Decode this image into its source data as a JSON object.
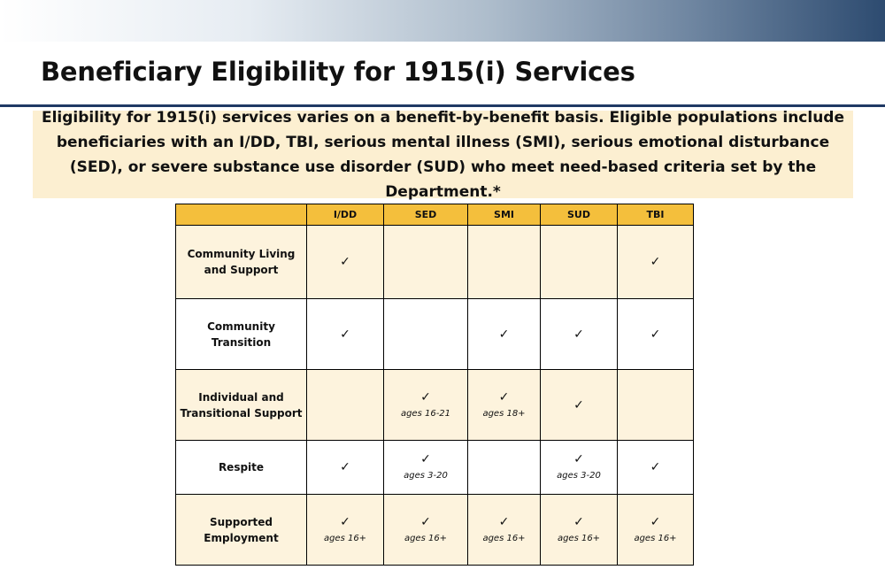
{
  "slide": {
    "title": "Beneficiary Eligibility for 1915(i) Services",
    "callout": "Eligibility for 1915(i) services varies on a benefit-by-benefit basis. Eligible populations include beneficiaries with an I/DD, TBI, serious mental illness (SMI), serious emotional disturbance (SED), or severe substance use disorder (SUD) who meet need-based criteria set by the Department.*"
  },
  "table": {
    "columns": [
      "I/DD",
      "SED",
      "SMI",
      "SUD",
      "TBI"
    ],
    "check_mark": "✓",
    "rows": [
      {
        "label": "Community Living and Support",
        "cells": [
          {
            "check": "✓",
            "note": ""
          },
          {
            "check": "",
            "note": ""
          },
          {
            "check": "",
            "note": ""
          },
          {
            "check": "",
            "note": ""
          },
          {
            "check": "✓",
            "note": ""
          }
        ]
      },
      {
        "label": "Community Transition",
        "cells": [
          {
            "check": "✓",
            "note": ""
          },
          {
            "check": "",
            "note": ""
          },
          {
            "check": "✓",
            "note": ""
          },
          {
            "check": "✓",
            "note": ""
          },
          {
            "check": "✓",
            "note": ""
          }
        ]
      },
      {
        "label": "Individual and Transitional Support",
        "cells": [
          {
            "check": "",
            "note": ""
          },
          {
            "check": "✓",
            "note": "ages 16-21"
          },
          {
            "check": "✓",
            "note": "ages 18+"
          },
          {
            "check": "✓",
            "note": ""
          },
          {
            "check": "",
            "note": ""
          }
        ]
      },
      {
        "label": "Respite",
        "cells": [
          {
            "check": "✓",
            "note": ""
          },
          {
            "check": "✓",
            "note": "ages 3-20"
          },
          {
            "check": "",
            "note": ""
          },
          {
            "check": "✓",
            "note": "ages 3-20"
          },
          {
            "check": "✓",
            "note": ""
          }
        ]
      },
      {
        "label": "Supported Employment",
        "cells": [
          {
            "check": "✓",
            "note": "ages 16+"
          },
          {
            "check": "✓",
            "note": "ages 16+"
          },
          {
            "check": "✓",
            "note": "ages 16+"
          },
          {
            "check": "✓",
            "note": "ages 16+"
          },
          {
            "check": "✓",
            "note": "ages 16+"
          }
        ]
      }
    ]
  },
  "colors": {
    "header_band_dark": "#2d4b70",
    "title_rule": "#1f3964",
    "callout_bg": "#fcefd1",
    "table_header_bg": "#f4bf3c",
    "row_shade_bg": "#fdf3dd"
  }
}
